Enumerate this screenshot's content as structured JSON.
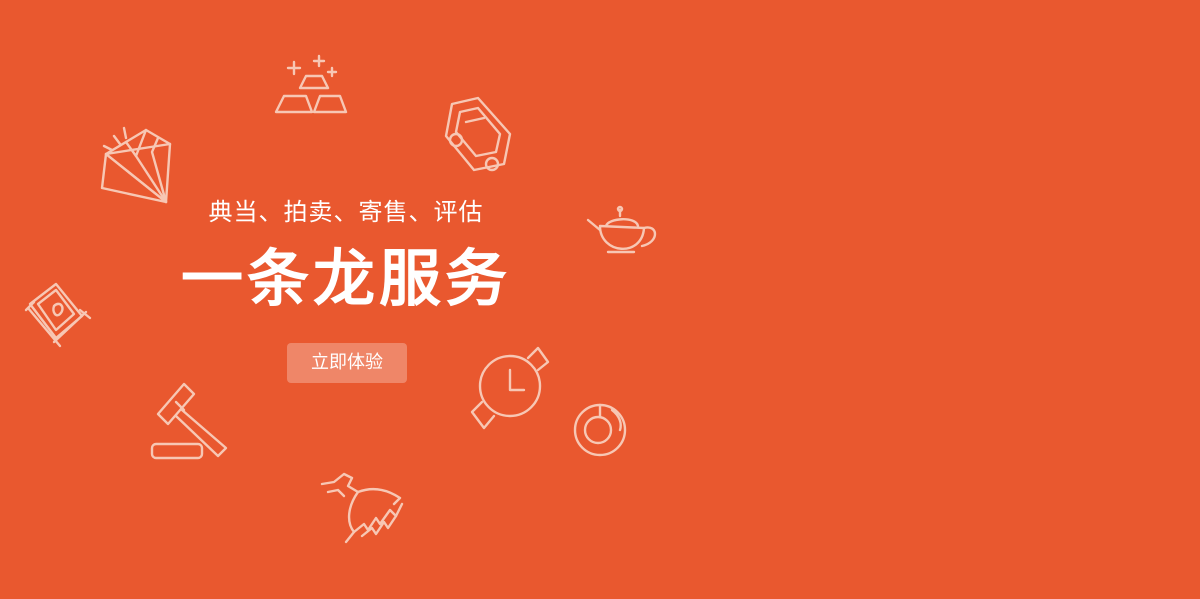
{
  "banner": {
    "subtitle": "典当、拍卖、寄售、评估",
    "headline": "一条龙服务",
    "cta_label": "立即体验",
    "background_color": "#e9582f",
    "icon_color": "#f7c7b4"
  },
  "icons": [
    "gold-bars-icon",
    "diamond-icon",
    "car-icon",
    "teapot-icon",
    "painting-scroll-icon",
    "watch-icon",
    "auction-gavel-icon",
    "jade-bracelet-icon",
    "dragon-icon"
  ]
}
